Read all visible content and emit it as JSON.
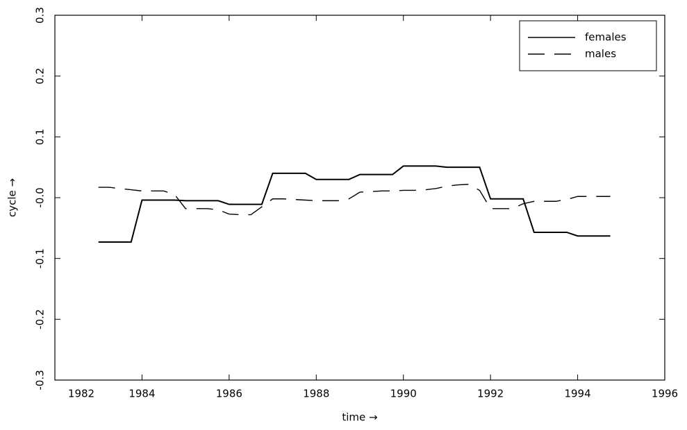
{
  "chart_data": {
    "type": "line",
    "x_label": "time →",
    "y_label": "cycle →",
    "x": [
      1983,
      1983.25,
      1983.5,
      1983.75,
      1984,
      1984.25,
      1984.5,
      1984.75,
      1985,
      1985.25,
      1985.5,
      1985.75,
      1986,
      1986.25,
      1986.5,
      1986.75,
      1987,
      1987.25,
      1987.5,
      1987.75,
      1988,
      1988.25,
      1988.5,
      1988.75,
      1989,
      1989.25,
      1989.5,
      1989.75,
      1990,
      1990.25,
      1990.5,
      1990.75,
      1991,
      1991.25,
      1991.5,
      1991.75,
      1992,
      1992.25,
      1992.5,
      1992.75,
      1993,
      1993.25,
      1993.5,
      1993.75,
      1994,
      1994.25,
      1994.5,
      1994.75
    ],
    "series": [
      {
        "name": "females",
        "color": "#000000",
        "dash": "solid",
        "values": [
          -0.073,
          -0.073,
          -0.073,
          -0.073,
          -0.004,
          -0.004,
          -0.004,
          -0.004,
          -0.005,
          -0.005,
          -0.005,
          -0.005,
          -0.011,
          -0.011,
          -0.011,
          -0.011,
          0.04,
          0.04,
          0.04,
          0.04,
          0.03,
          0.03,
          0.03,
          0.03,
          0.038,
          0.038,
          0.038,
          0.038,
          0.052,
          0.052,
          0.052,
          0.052,
          0.05,
          0.05,
          0.05,
          0.05,
          -0.002,
          -0.002,
          -0.002,
          -0.002,
          -0.057,
          -0.057,
          -0.057,
          -0.057,
          -0.063,
          -0.063,
          -0.063,
          -0.063
        ]
      },
      {
        "name": "males",
        "color": "#000000",
        "dash": "dashed",
        "values": [
          0.017,
          0.017,
          0.015,
          0.013,
          0.011,
          0.011,
          0.011,
          0.005,
          -0.018,
          -0.018,
          -0.018,
          -0.02,
          -0.027,
          -0.028,
          -0.028,
          -0.015,
          -0.002,
          -0.002,
          -0.003,
          -0.004,
          -0.005,
          -0.005,
          -0.005,
          -0.002,
          0.009,
          0.01,
          0.011,
          0.011,
          0.012,
          0.012,
          0.013,
          0.015,
          0.019,
          0.021,
          0.022,
          0.012,
          -0.018,
          -0.018,
          -0.018,
          -0.01,
          -0.006,
          -0.006,
          -0.006,
          -0.003,
          0.002,
          0.002,
          0.002,
          0.002
        ]
      }
    ],
    "xlim": [
      1982,
      1996
    ],
    "xticks": [
      1982,
      1984,
      1986,
      1988,
      1990,
      1992,
      1994,
      1996
    ],
    "ylim": [
      -0.3,
      0.3
    ],
    "yticks": [
      -0.3,
      -0.2,
      -0.1,
      {
        "value": 0,
        "label": "-0.0"
      },
      0.1,
      0.2,
      0.3
    ],
    "legend": "top-right"
  }
}
